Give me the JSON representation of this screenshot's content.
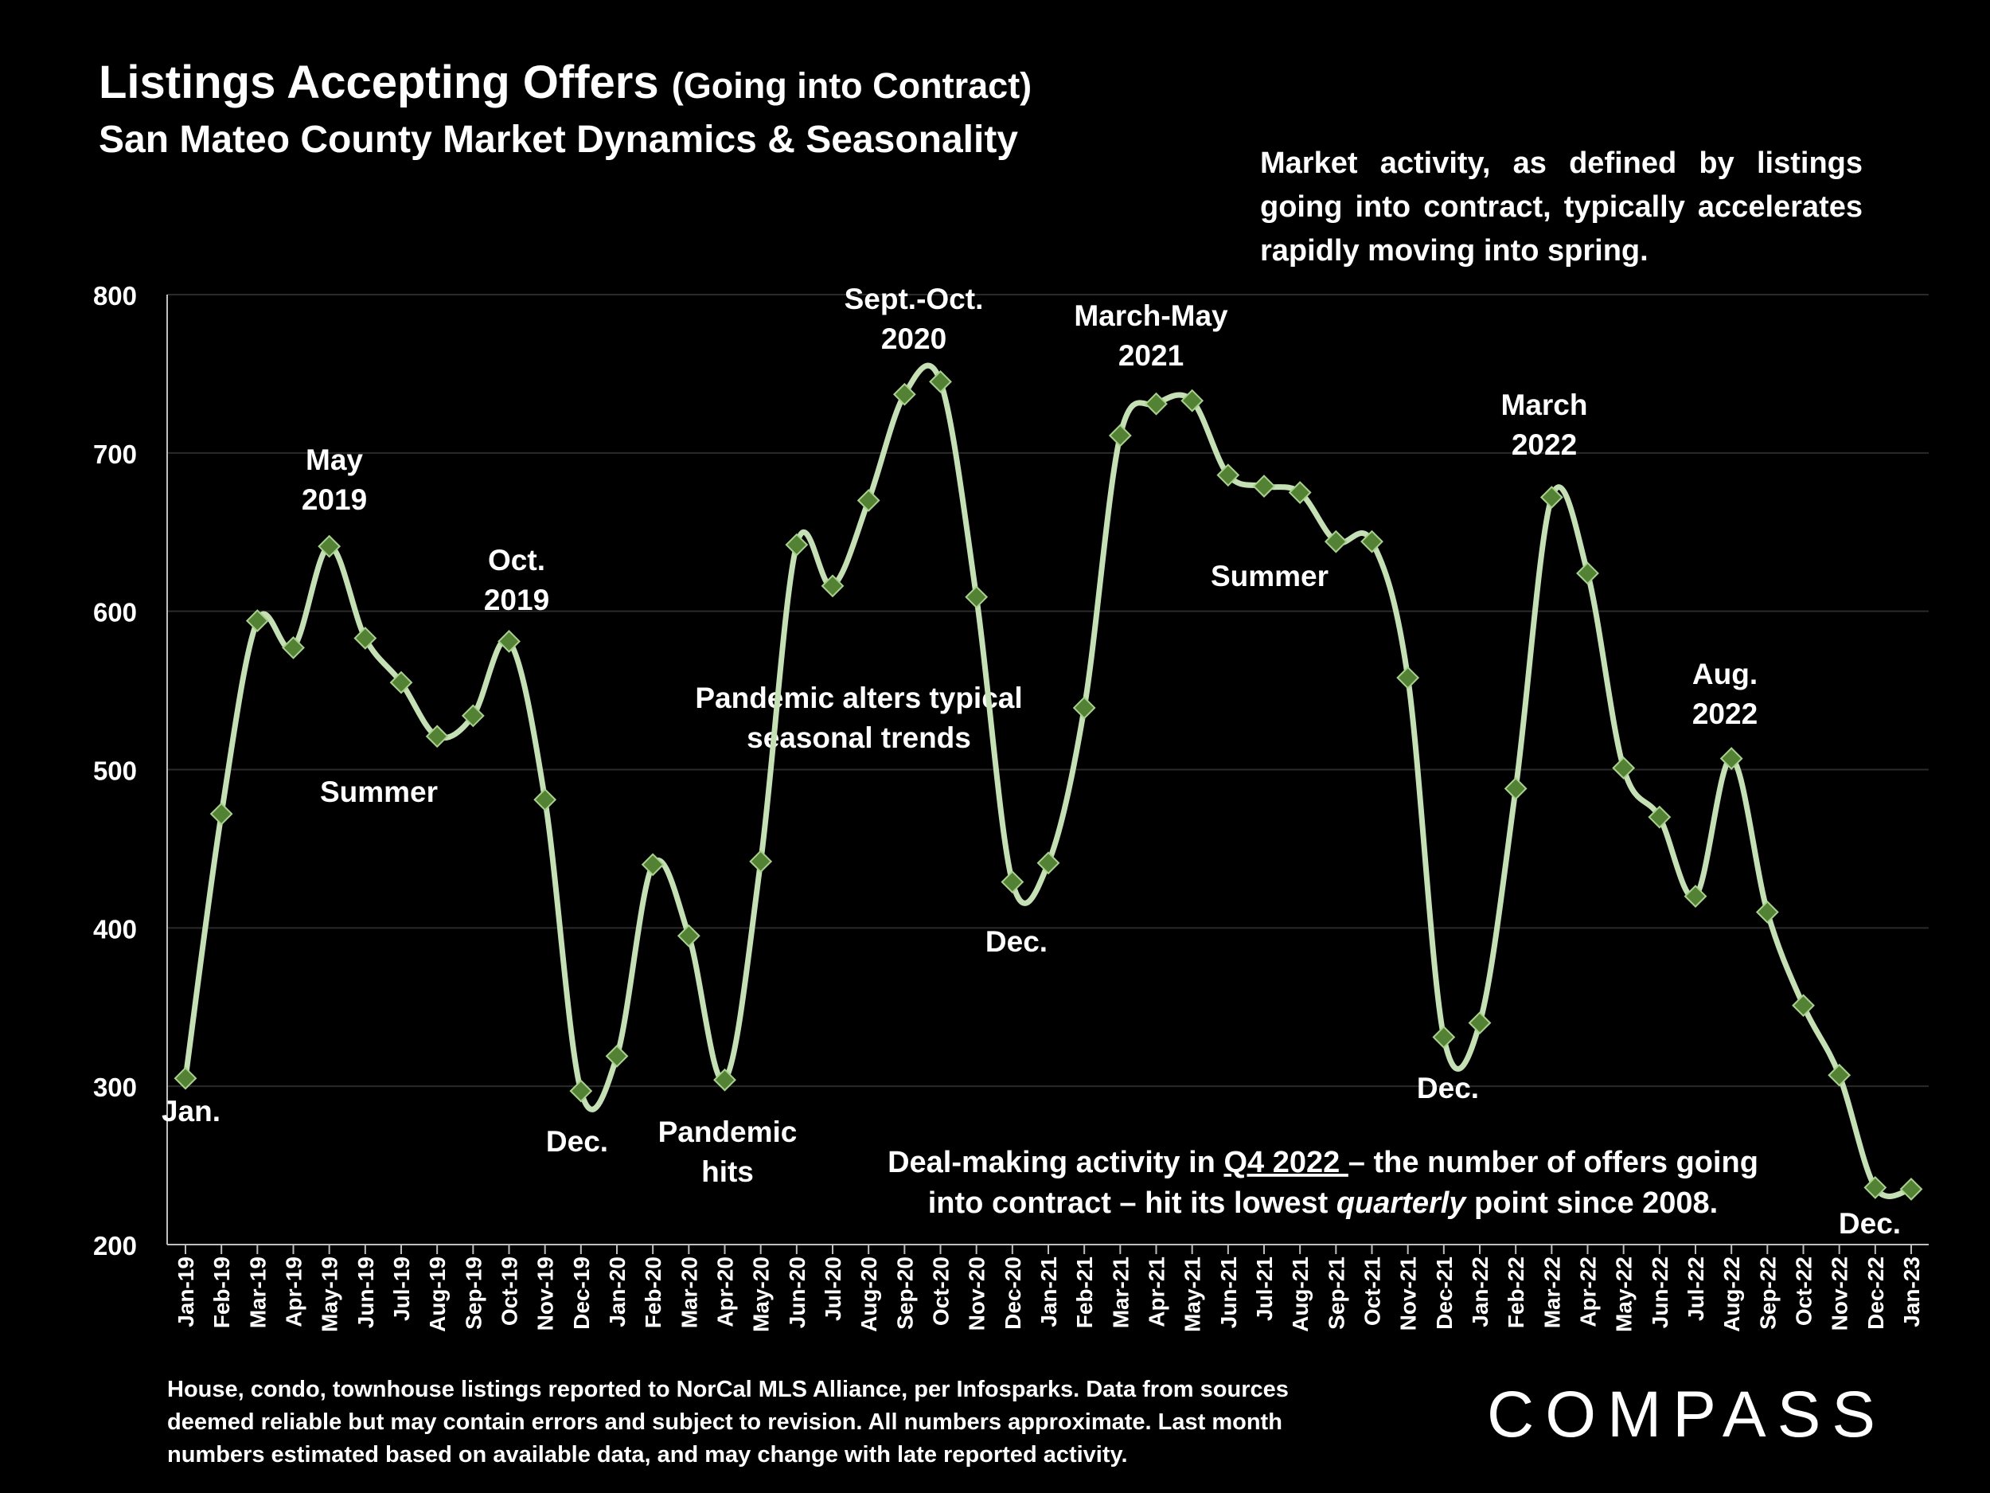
{
  "title": {
    "main": "Listings Accepting Offers",
    "paren": "(Going into Contract)"
  },
  "subtitle": "San Mateo County Market Dynamics & Seasonality",
  "note_top": "Market activity, as defined by listings going into contract, typically accelerates rapidly moving into spring.",
  "note_bottom": {
    "pre": "Deal-making activity in ",
    "link": "Q4 2022 ",
    "mid": "– the number of offers going into contract – hit its lowest ",
    "em": "quarterly",
    "post": " point since 2008."
  },
  "footnote": "House, condo, townhouse listings reported to NorCal MLS Alliance, per Infosparks. Data from sources deemed reliable but may contain errors and subject to revision. All numbers approximate. Last month numbers estimated based on available data, and may change with late reported activity.",
  "logo": "COMPASS",
  "colors": {
    "line": "#c5e0b4",
    "marker": "#548235",
    "marker_edge": "#a9d18e",
    "grid": "#2a2a2a",
    "axis": "#bfbfbf"
  },
  "chart_data": {
    "type": "line",
    "title": "Listings Accepting Offers (Going into Contract)",
    "xlabel": "",
    "ylabel": "",
    "ylim": [
      200,
      800
    ],
    "yticks": [
      200,
      300,
      400,
      500,
      600,
      700,
      800
    ],
    "grid": true,
    "categories": [
      "Jan-19",
      "Feb-19",
      "Mar-19",
      "Apr-19",
      "May-19",
      "Jun-19",
      "Jul-19",
      "Aug-19",
      "Sep-19",
      "Oct-19",
      "Nov-19",
      "Dec-19",
      "Jan-20",
      "Feb-20",
      "Mar-20",
      "Apr-20",
      "May-20",
      "Jun-20",
      "Jul-20",
      "Aug-20",
      "Sep-20",
      "Oct-20",
      "Nov-20",
      "Dec-20",
      "Jan-21",
      "Feb-21",
      "Mar-21",
      "Apr-21",
      "May-21",
      "Jun-21",
      "Jul-21",
      "Aug-21",
      "Sep-21",
      "Oct-21",
      "Nov-21",
      "Dec-21",
      "Jan-22",
      "Feb-22",
      "Mar-22",
      "Apr-22",
      "May-22",
      "Jun-22",
      "Jul-22",
      "Aug-22",
      "Sep-22",
      "Oct-22",
      "Nov-22",
      "Dec-22",
      "Jan-23"
    ],
    "series": [
      {
        "name": "Listings Accepting Offers",
        "values": [
          305,
          472,
          594,
          577,
          641,
          583,
          555,
          521,
          534,
          581,
          481,
          297,
          319,
          440,
          395,
          304,
          442,
          642,
          616,
          670,
          737,
          745,
          609,
          429,
          441,
          539,
          711,
          731,
          733,
          686,
          679,
          675,
          644,
          644,
          558,
          331,
          340,
          488,
          672,
          624,
          501,
          470,
          420,
          507,
          410,
          351,
          307,
          236,
          235
        ]
      }
    ],
    "annotations": [
      {
        "text": [
          "Jan."
        ],
        "index": 0,
        "value": 305
      },
      {
        "text": [
          "May",
          "2019"
        ],
        "index": 4,
        "value": 641
      },
      {
        "text": [
          "Summer"
        ],
        "index": 5,
        "value": 583
      },
      {
        "text": [
          "Oct.",
          "2019"
        ],
        "index": 9,
        "value": 581
      },
      {
        "text": [
          "Dec."
        ],
        "index": 11,
        "value": 297
      },
      {
        "text": [
          "Pandemic",
          "hits"
        ],
        "index": 15,
        "value": 304
      },
      {
        "text": [
          "Pandemic alters typical",
          "seasonal trends"
        ],
        "index": 18,
        "value": 616
      },
      {
        "text": [
          "Sept.-Oct.",
          "2020"
        ],
        "index": 20,
        "value": 745
      },
      {
        "text": [
          "Dec."
        ],
        "index": 23,
        "value": 429
      },
      {
        "text": [
          "March-May",
          "2021"
        ],
        "index": 27,
        "value": 733
      },
      {
        "text": [
          "Summer"
        ],
        "index": 31,
        "value": 675
      },
      {
        "text": [
          "Dec."
        ],
        "index": 35,
        "value": 331
      },
      {
        "text": [
          "March",
          "2022"
        ],
        "index": 38,
        "value": 672
      },
      {
        "text": [
          "Aug.",
          "2022"
        ],
        "index": 43,
        "value": 507
      },
      {
        "text": [
          "Dec."
        ],
        "index": 47,
        "value": 236
      }
    ]
  }
}
